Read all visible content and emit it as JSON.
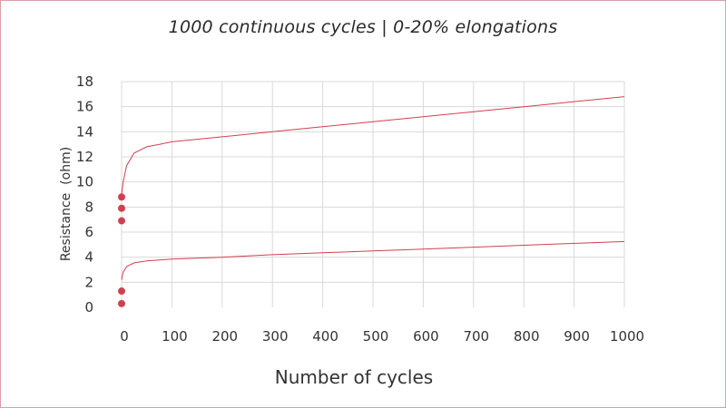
{
  "chart_data": {
    "type": "line",
    "title": "1000 continuous cycles | 0-20% elongations",
    "xlabel": "Number of cycles",
    "ylabel": "Resistance  (ohm)",
    "xlim": [
      0,
      1000
    ],
    "ylim": [
      0,
      18
    ],
    "xticks": [
      0,
      100,
      200,
      300,
      400,
      500,
      600,
      700,
      800,
      900,
      1000
    ],
    "yticks": [
      0,
      2,
      4,
      6,
      8,
      10,
      12,
      14,
      16,
      18
    ],
    "grid": true,
    "line_color": "#d2404f",
    "series": [
      {
        "x": [
          0,
          3,
          10,
          25,
          50,
          75,
          100,
          200,
          300,
          400,
          500,
          600,
          700,
          800,
          900,
          1000
        ],
        "y": [
          9.0,
          10.0,
          11.3,
          12.3,
          12.8,
          13.0,
          13.2,
          13.6,
          14.0,
          14.4,
          14.8,
          15.2,
          15.6,
          16.0,
          16.4,
          16.8
        ]
      },
      {
        "x": [
          0,
          3,
          10,
          25,
          50,
          75,
          100,
          200,
          300,
          400,
          500,
          600,
          700,
          800,
          900,
          1000
        ],
        "y": [
          2.2,
          2.8,
          3.25,
          3.55,
          3.7,
          3.78,
          3.85,
          4.0,
          4.2,
          4.35,
          4.5,
          4.65,
          4.8,
          4.95,
          5.1,
          5.25
        ]
      }
    ],
    "markers": [
      {
        "x": 0,
        "y": 8.8
      },
      {
        "x": 0,
        "y": 7.9
      },
      {
        "x": 0,
        "y": 6.9
      },
      {
        "x": 0,
        "y": 1.3
      },
      {
        "x": 0,
        "y": 0.3
      }
    ]
  }
}
